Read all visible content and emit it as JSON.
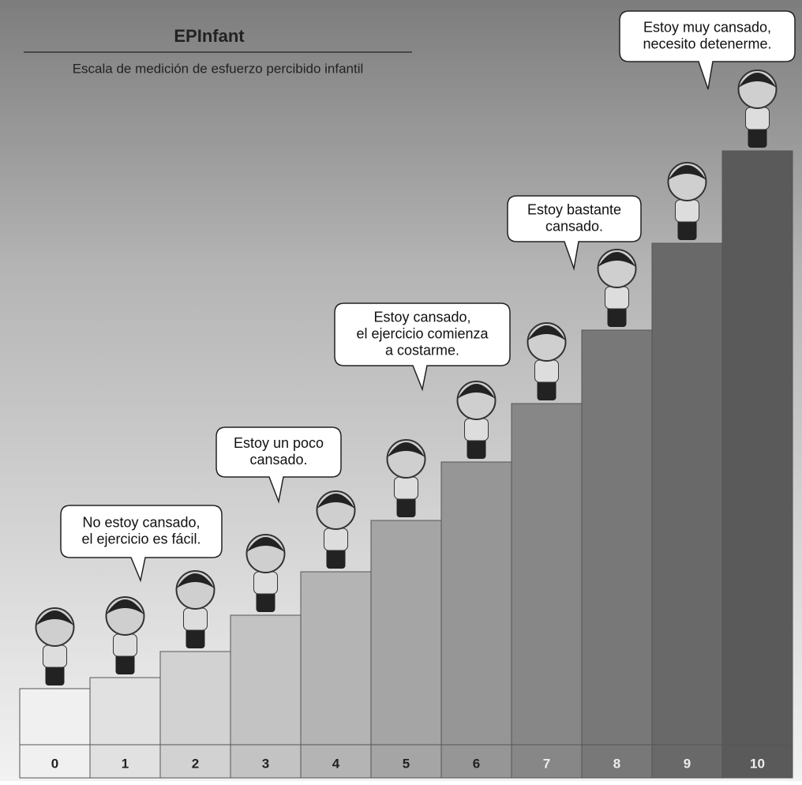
{
  "header": {
    "title": "EPInfant",
    "subtitle": "Escala de medición de esfuerzo percibido infantil"
  },
  "steps": [
    "0",
    "1",
    "2",
    "3",
    "4",
    "5",
    "6",
    "7",
    "8",
    "9",
    "10"
  ],
  "bubbles": [
    {
      "lines": [
        "No estoy cansado,",
        "el ejercicio es fácil."
      ]
    },
    {
      "lines": [
        "Estoy un poco",
        "cansado."
      ]
    },
    {
      "lines": [
        "Estoy cansado,",
        "el ejercicio comienza",
        "a costarme."
      ]
    },
    {
      "lines": [
        "Estoy bastante",
        "cansado."
      ]
    },
    {
      "lines": [
        "Estoy muy cansado,",
        "necesito detenerme."
      ]
    }
  ]
}
